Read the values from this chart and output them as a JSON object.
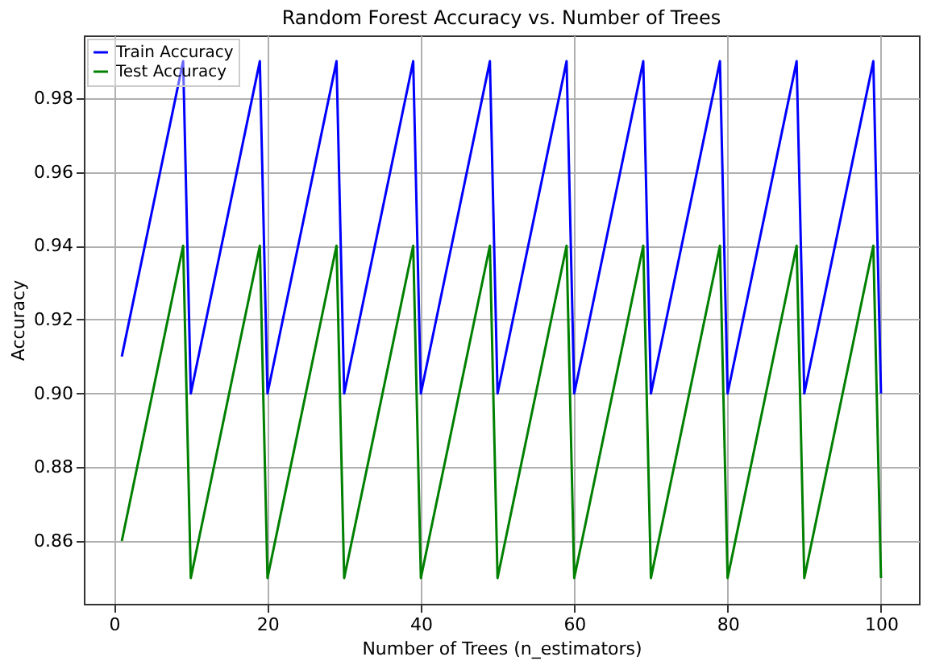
{
  "chart_data": {
    "type": "line",
    "title": "Random Forest Accuracy vs. Number of Trees",
    "xlabel": "Number of Trees (n_estimators)",
    "ylabel": "Accuracy",
    "x": [
      1,
      9,
      10,
      19,
      20,
      29,
      30,
      39,
      40,
      49,
      50,
      59,
      60,
      69,
      70,
      79,
      80,
      89,
      90,
      99,
      100
    ],
    "series": [
      {
        "name": "Train Accuracy",
        "color": "#0000ff",
        "values": [
          0.91,
          0.99,
          0.9,
          0.99,
          0.9,
          0.99,
          0.9,
          0.99,
          0.9,
          0.99,
          0.9,
          0.99,
          0.9,
          0.99,
          0.9,
          0.99,
          0.9,
          0.99,
          0.9,
          0.99,
          0.9
        ]
      },
      {
        "name": "Test Accuracy",
        "color": "#008000",
        "values": [
          0.86,
          0.94,
          0.85,
          0.94,
          0.85,
          0.94,
          0.85,
          0.94,
          0.85,
          0.94,
          0.85,
          0.94,
          0.85,
          0.94,
          0.85,
          0.94,
          0.85,
          0.94,
          0.85,
          0.94,
          0.85
        ]
      }
    ],
    "xlim": [
      -3.95,
      104.95
    ],
    "ylim": [
      0.843,
      0.997
    ],
    "xticks": [
      0,
      20,
      40,
      60,
      80,
      100
    ],
    "yticks": [
      0.86,
      0.88,
      {
        "value": 0.9,
        "label": "0.90"
      },
      0.92,
      0.94,
      0.96,
      0.98
    ],
    "grid": true,
    "legend": "top left",
    "marker": "none",
    "line_style": "solid"
  }
}
